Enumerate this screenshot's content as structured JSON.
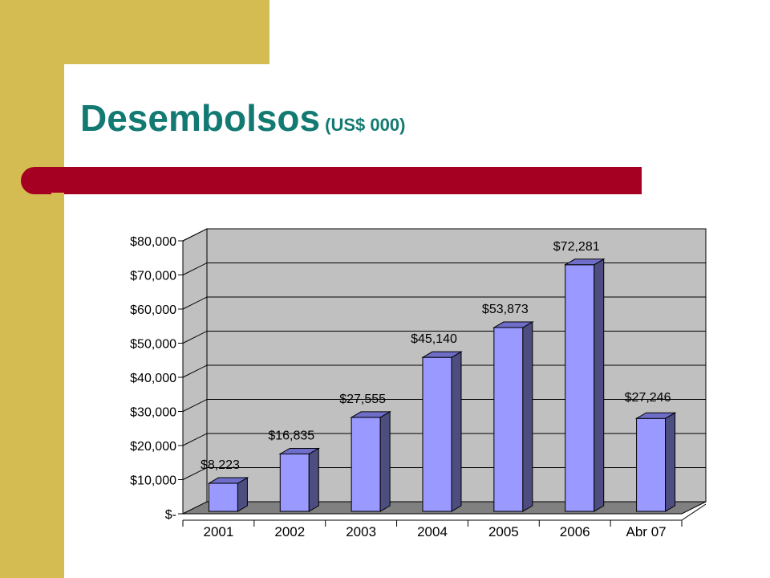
{
  "slide": {
    "title": "Desembolsos",
    "subtitle": "(US$ 000)"
  },
  "colors": {
    "gold": "#D4BC52",
    "teal_title": "#127A72",
    "crimson_bar": "#A50021",
    "bar_front": "#9999FF",
    "bar_side": "#4D4D80",
    "bar_top": "#6E6EC8",
    "wall": "#C0C0C0",
    "floor": "#808080"
  },
  "chart_data": {
    "type": "bar",
    "categories": [
      "2001",
      "2002",
      "2003",
      "2004",
      "2005",
      "2006",
      "Abr 07"
    ],
    "values": [
      8223,
      16835,
      27555,
      45140,
      53873,
      72281,
      27246
    ],
    "data_labels": [
      "$8,223",
      "$16,835",
      "$27,555",
      "$45,140",
      "$53,873",
      "$72,281",
      "$27,246"
    ],
    "y_ticks": [
      0,
      10000,
      20000,
      30000,
      40000,
      50000,
      60000,
      70000,
      80000
    ],
    "y_tick_labels": [
      "$-",
      "$10,000",
      "$20,000",
      "$30,000",
      "$40,000",
      "$50,000",
      "$60,000",
      "$70,000",
      "$80,000"
    ],
    "ylim": [
      0,
      80000
    ],
    "grid": true,
    "style": "3d-column"
  }
}
